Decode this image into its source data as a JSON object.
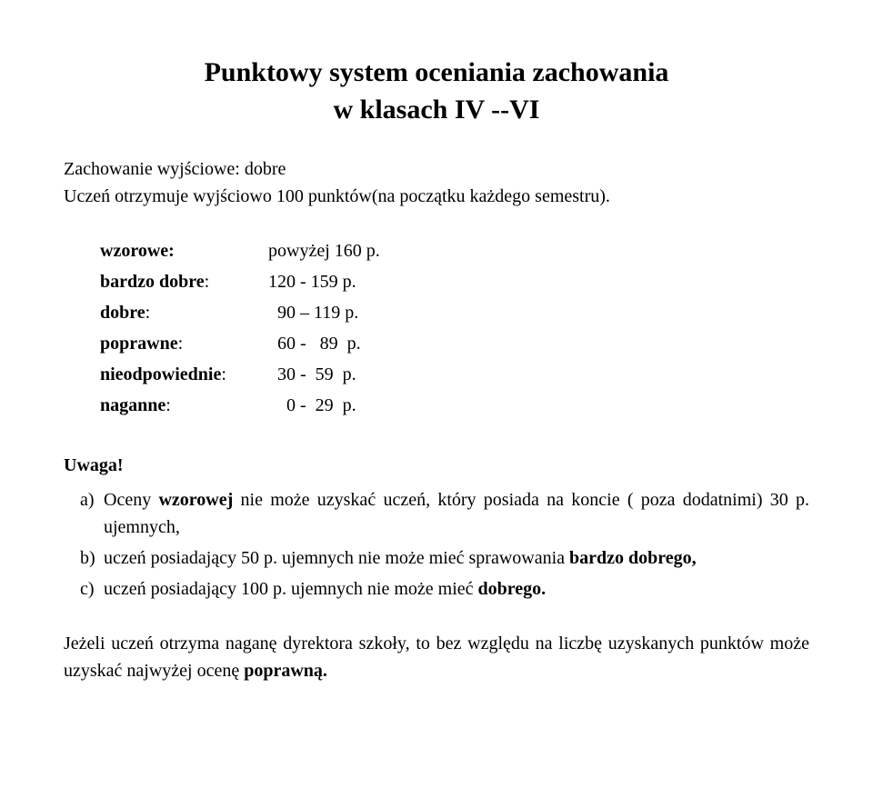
{
  "title_line1": "Punktowy system oceniania zachowania",
  "title_line2": "w klasach IV --VI",
  "intro_line1": "Zachowanie wyjściowe: dobre",
  "intro_line2": "Uczeń otrzymuje wyjściowo 100 punktów(na początku każdego semestru).",
  "grades": {
    "wzorowe_label": "wzorowe:",
    "wzorowe_value": "powyżej 160 p.",
    "bardzo_dobre_label": "bardzo dobre",
    "bardzo_dobre_colon": ":",
    "bardzo_dobre_value": "120 - 159 p.",
    "dobre_label": "dobre",
    "dobre_colon": ":",
    "dobre_value": "  90 – 119 p.",
    "poprawne_label": "poprawne",
    "poprawne_colon": ":",
    "poprawne_value": "  60 -   89  p.",
    "nieodpowiednie_label": "nieodpowiednie",
    "nieodpowiednie_colon": ":",
    "nieodpowiednie_value": "  30 -  59  p.",
    "naganne_label": "naganne",
    "naganne_colon": ":",
    "naganne_value": "    0 -  29  p."
  },
  "uwaga_label": "Uwaga!",
  "list": {
    "a_marker": "a)",
    "a_pre": "Oceny ",
    "a_bold": "wzorowej",
    "a_post": " nie może uzyskać uczeń, który posiada na koncie ( poza dodatnimi) 30  p. ujemnych,",
    "b_marker": "b)",
    "b_pre": " uczeń posiadający 50 p. ujemnych nie może mieć sprawowania ",
    "b_bold": "bardzo dobrego,",
    "c_marker": "c)",
    "c_pre": "uczeń posiadający 100 p. ujemnych nie może mieć ",
    "c_bold": "dobrego.",
    "c_post": ""
  },
  "closing_pre": "Jeżeli uczeń otrzyma naganę dyrektora szkoły, to bez względu na liczbę uzyskanych punktów może uzyskać najwyżej ocenę ",
  "closing_bold": "poprawną."
}
